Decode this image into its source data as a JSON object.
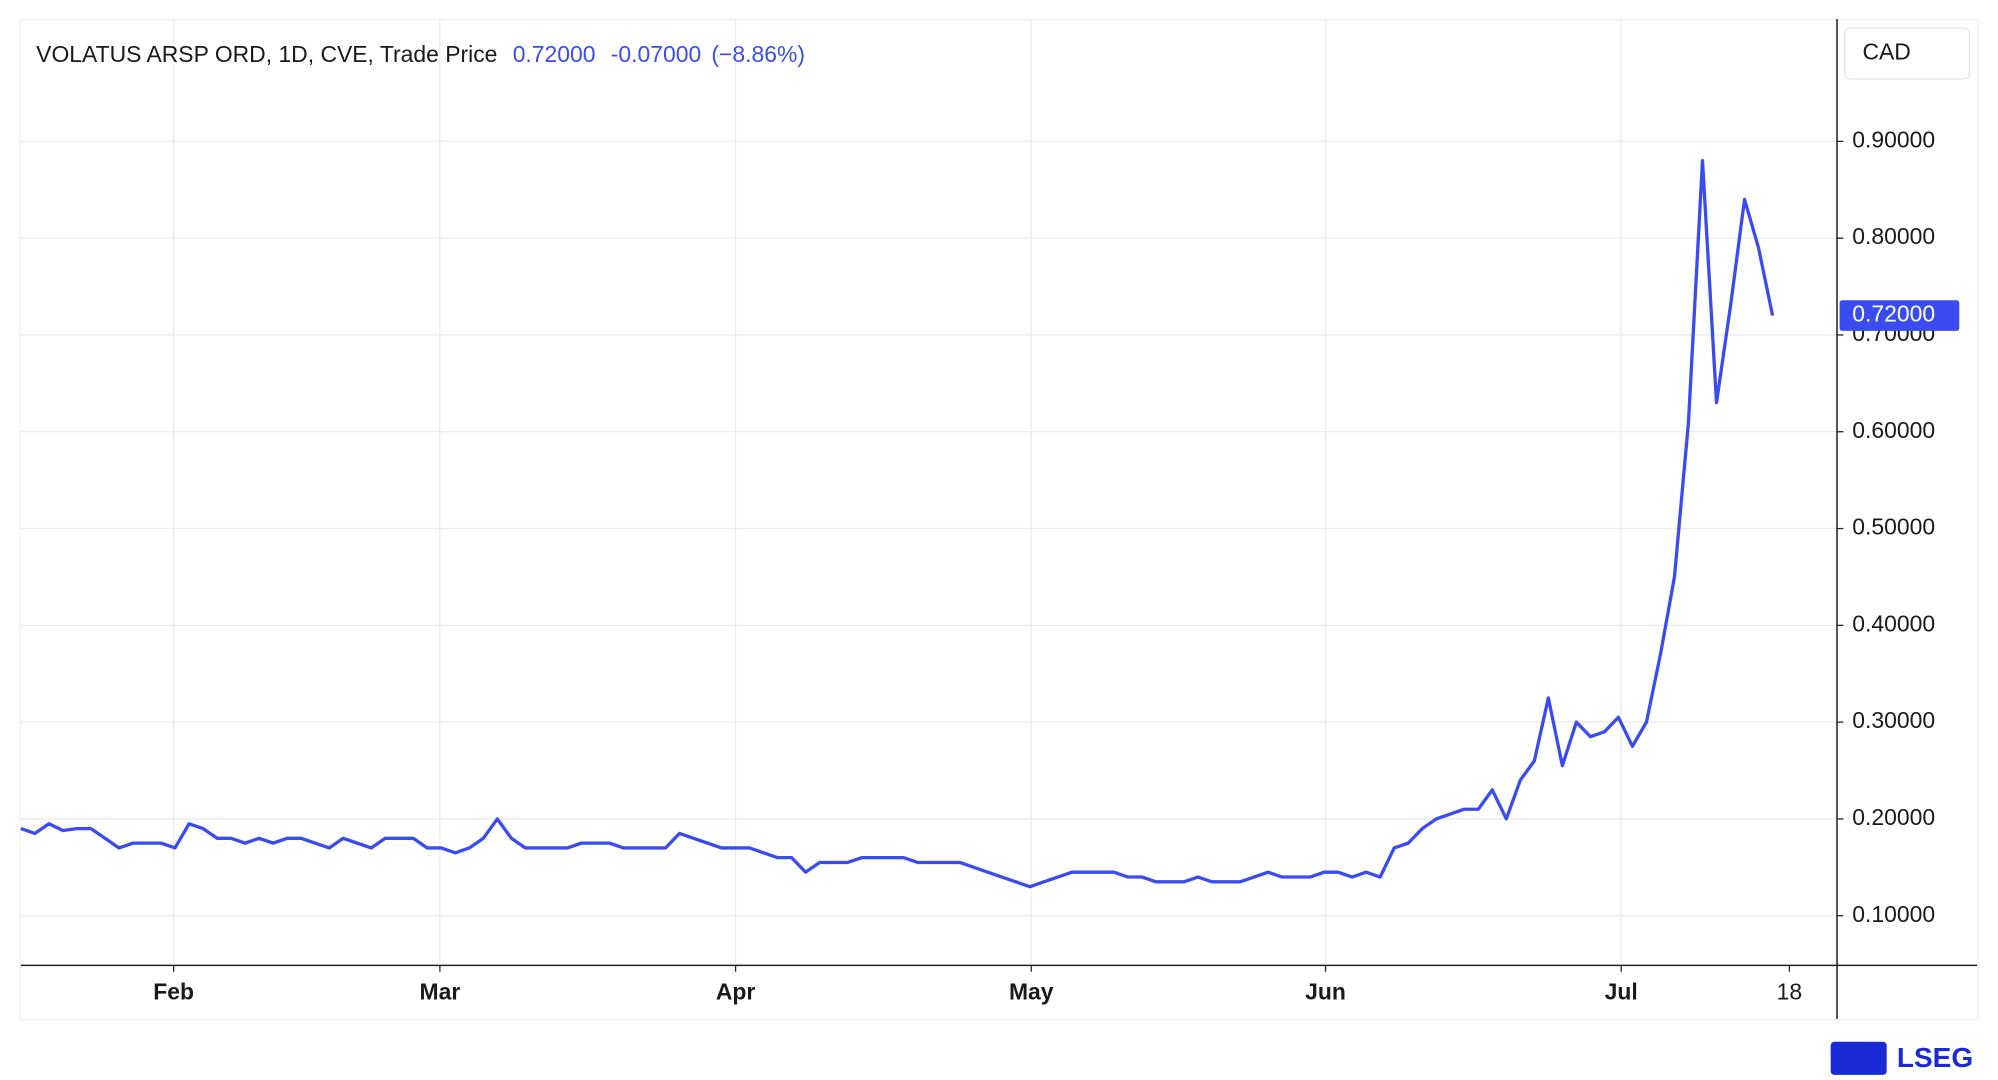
{
  "chart_data": {
    "type": "line",
    "title": "VOLATUS ARSP ORD, 1D, CVE, Trade Price",
    "last_price": "0.72000",
    "change": "-0.07000",
    "change_pct": "(−8.86%)",
    "currency": "CAD",
    "brand": "LSEG",
    "color": "#3a4cf0",
    "x": [
      0,
      1,
      2,
      3,
      4,
      5,
      6,
      7,
      8,
      9,
      10,
      11,
      12,
      13,
      14,
      15,
      16,
      17,
      18,
      19,
      20,
      21,
      22,
      23,
      24,
      25,
      26,
      27,
      28,
      29,
      30,
      31,
      32,
      33,
      34,
      35,
      36,
      37,
      38,
      39,
      40,
      41,
      42,
      43,
      44,
      45,
      46,
      47,
      48,
      49,
      50,
      51,
      52,
      53,
      54,
      55,
      56,
      57,
      58,
      59,
      60,
      61,
      62,
      63,
      64,
      65,
      66,
      67,
      68,
      69,
      70,
      71,
      72,
      73,
      74,
      75,
      76,
      77,
      78,
      79,
      80,
      81,
      82,
      83,
      84,
      85,
      86,
      87,
      88,
      89,
      90,
      91,
      92,
      93,
      94,
      95,
      96,
      97,
      98,
      99,
      100,
      101,
      102,
      103,
      104,
      105,
      106,
      107,
      108,
      109,
      110,
      111,
      112,
      113,
      114,
      115,
      116,
      117,
      118,
      119,
      120,
      121,
      122,
      123,
      124,
      125
    ],
    "values": [
      0.19,
      0.185,
      0.195,
      0.188,
      0.19,
      0.19,
      0.18,
      0.17,
      0.175,
      0.175,
      0.175,
      0.17,
      0.195,
      0.19,
      0.18,
      0.18,
      0.175,
      0.18,
      0.175,
      0.18,
      0.18,
      0.175,
      0.17,
      0.18,
      0.175,
      0.17,
      0.18,
      0.18,
      0.18,
      0.17,
      0.17,
      0.165,
      0.17,
      0.18,
      0.2,
      0.18,
      0.17,
      0.17,
      0.17,
      0.17,
      0.175,
      0.175,
      0.175,
      0.17,
      0.17,
      0.17,
      0.17,
      0.185,
      0.18,
      0.175,
      0.17,
      0.17,
      0.17,
      0.165,
      0.16,
      0.16,
      0.145,
      0.155,
      0.155,
      0.155,
      0.16,
      0.16,
      0.16,
      0.16,
      0.155,
      0.155,
      0.155,
      0.155,
      0.15,
      0.145,
      0.14,
      0.135,
      0.13,
      0.135,
      0.14,
      0.145,
      0.145,
      0.145,
      0.145,
      0.14,
      0.14,
      0.135,
      0.135,
      0.135,
      0.14,
      0.135,
      0.135,
      0.135,
      0.14,
      0.145,
      0.14,
      0.14,
      0.14,
      0.145,
      0.145,
      0.14,
      0.145,
      0.14,
      0.17,
      0.175,
      0.19,
      0.2,
      0.205,
      0.21,
      0.21,
      0.23,
      0.2,
      0.24,
      0.26,
      0.325,
      0.255,
      0.3,
      0.285,
      0.29,
      0.305,
      0.275,
      0.3,
      0.37,
      0.45,
      0.61,
      0.88,
      0.63,
      0.73,
      0.84,
      0.79,
      0.72
    ],
    "xlim": [
      0,
      129.6
    ],
    "xticks": [
      {
        "value": 10.9,
        "label": "Feb"
      },
      {
        "value": 29.9,
        "label": "Mar"
      },
      {
        "value": 51,
        "label": "Apr"
      },
      {
        "value": 72.1,
        "label": "May"
      },
      {
        "value": 93.1,
        "label": "Jun"
      },
      {
        "value": 114.2,
        "label": "Jul"
      },
      {
        "value": 126.2,
        "label": "18"
      }
    ],
    "ylim": [
      0.0487,
      1.0263
    ],
    "yticks": [
      {
        "value": 0.1,
        "label": "0.10000"
      },
      {
        "value": 0.2,
        "label": "0.20000"
      },
      {
        "value": 0.3,
        "label": "0.30000"
      },
      {
        "value": 0.4,
        "label": "0.40000"
      },
      {
        "value": 0.5,
        "label": "0.50000"
      },
      {
        "value": 0.6,
        "label": "0.60000"
      },
      {
        "value": 0.7,
        "label": "0.70000"
      },
      {
        "value": 0.8,
        "label": "0.80000"
      },
      {
        "value": 0.9,
        "label": "0.90000"
      }
    ],
    "grid": true
  }
}
